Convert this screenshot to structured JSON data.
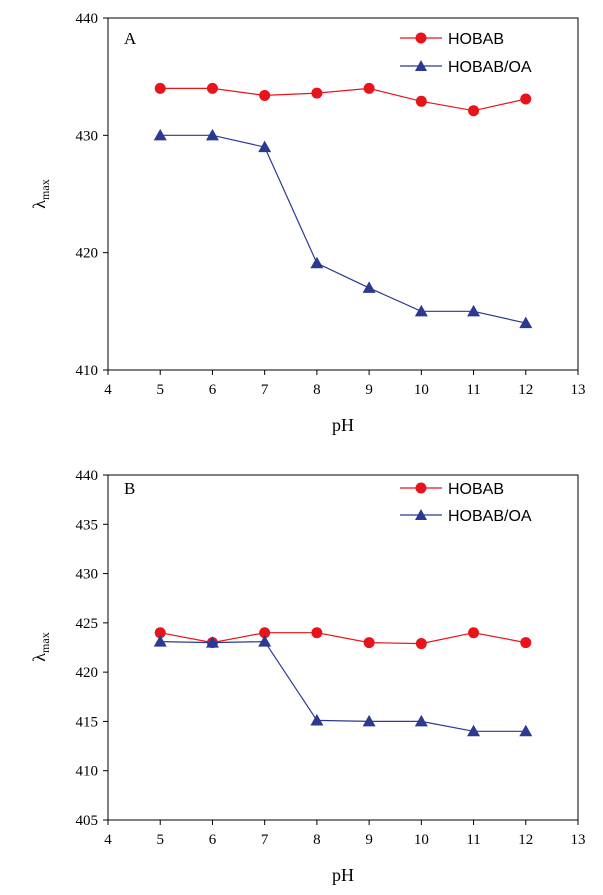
{
  "chart_data": [
    {
      "type": "line",
      "panel_label": "A",
      "xlabel": "pH",
      "ylabel_main": "λ",
      "ylabel_sub": "max",
      "xlim": [
        4,
        13
      ],
      "ylim": [
        410,
        440
      ],
      "x_ticks": [
        4,
        5,
        6,
        7,
        8,
        9,
        10,
        11,
        12,
        13
      ],
      "y_ticks": [
        410,
        420,
        430,
        440
      ],
      "legend_position": "top-right",
      "grid": false,
      "x": [
        5,
        6,
        7,
        8,
        9,
        10,
        11,
        12
      ],
      "series": [
        {
          "name": "HOBAB",
          "color": "#e8141b",
          "marker": "circle",
          "values": [
            434,
            434,
            433.4,
            433.6,
            434,
            432.9,
            432.1,
            433.1
          ]
        },
        {
          "name": "HOBAB/OA",
          "color": "#2b3990",
          "marker": "triangle",
          "values": [
            430,
            430,
            429,
            419.1,
            417,
            415,
            415,
            414
          ]
        }
      ]
    },
    {
      "type": "line",
      "panel_label": "B",
      "xlabel": "pH",
      "ylabel_main": "λ",
      "ylabel_sub": "max",
      "xlim": [
        4,
        13
      ],
      "ylim": [
        405,
        440
      ],
      "x_ticks": [
        4,
        5,
        6,
        7,
        8,
        9,
        10,
        11,
        12,
        13
      ],
      "y_ticks": [
        405,
        410,
        415,
        420,
        425,
        430,
        435,
        440
      ],
      "legend_position": "top-right",
      "grid": false,
      "x": [
        5,
        6,
        7,
        8,
        9,
        10,
        11,
        12
      ],
      "series": [
        {
          "name": "HOBAB",
          "color": "#e8141b",
          "marker": "circle",
          "values": [
            424,
            423,
            424,
            424,
            423,
            422.9,
            424,
            423
          ]
        },
        {
          "name": "HOBAB/OA",
          "color": "#2b3990",
          "marker": "triangle",
          "values": [
            423.1,
            423,
            423.1,
            415.1,
            415,
            415,
            414,
            414
          ]
        }
      ]
    }
  ]
}
